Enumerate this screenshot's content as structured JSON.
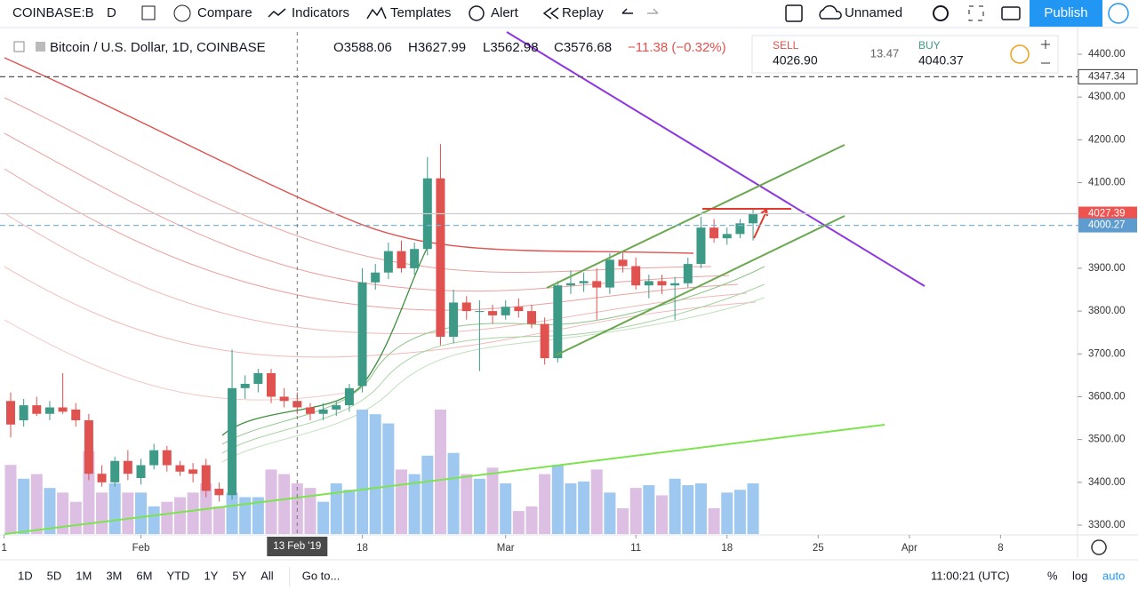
{
  "toolbar": {
    "symbol": "COINBASE:B",
    "interval": "D",
    "compare": "Compare",
    "indicators": "Indicators",
    "templates": "Templates",
    "alert": "Alert",
    "replay": "Replay",
    "layout": "Unnamed",
    "publish": "Publish"
  },
  "legend": {
    "title": "Bitcoin / U.S. Dollar, 1D, COINBASE",
    "open": "O3588.06",
    "high": "H3627.99",
    "low": "L3562.98",
    "close": "C3576.68",
    "change": "−11.38 (−0.32%)"
  },
  "trade": {
    "sell_label": "SELL",
    "sell": "4026.90",
    "spread": "13.47",
    "buy_label": "BUY",
    "buy": "4040.37"
  },
  "chart_data": {
    "type": "candlestick",
    "candles": [
      [
        3590,
        3610,
        3505,
        3535
      ],
      [
        3545,
        3595,
        3530,
        3580
      ],
      [
        3580,
        3600,
        3555,
        3560
      ],
      [
        3560,
        3590,
        3545,
        3575
      ],
      [
        3575,
        3655,
        3560,
        3565
      ],
      [
        3570,
        3585,
        3530,
        3545
      ],
      [
        3545,
        3560,
        3405,
        3420
      ],
      [
        3420,
        3440,
        3390,
        3400
      ],
      [
        3400,
        3460,
        3390,
        3450
      ],
      [
        3450,
        3475,
        3405,
        3420
      ],
      [
        3410,
        3455,
        3395,
        3440
      ],
      [
        3440,
        3490,
        3430,
        3475
      ],
      [
        3475,
        3485,
        3425,
        3440
      ],
      [
        3440,
        3450,
        3415,
        3425
      ],
      [
        3430,
        3445,
        3400,
        3420
      ],
      [
        3440,
        3455,
        3365,
        3380
      ],
      [
        3385,
        3400,
        3355,
        3370
      ],
      [
        3370,
        3710,
        3360,
        3620
      ],
      [
        3620,
        3650,
        3595,
        3630
      ],
      [
        3630,
        3665,
        3610,
        3655
      ],
      [
        3655,
        3665,
        3585,
        3600
      ],
      [
        3600,
        3620,
        3575,
        3590
      ],
      [
        3590,
        3610,
        3560,
        3575
      ],
      [
        3575,
        3585,
        3545,
        3560
      ],
      [
        3560,
        3585,
        3545,
        3570
      ],
      [
        3570,
        3590,
        3555,
        3580
      ],
      [
        3580,
        3630,
        3565,
        3620
      ],
      [
        3625,
        3900,
        3610,
        3867
      ],
      [
        3867,
        3910,
        3850,
        3890
      ],
      [
        3890,
        3960,
        3875,
        3940
      ],
      [
        3940,
        3965,
        3890,
        3900
      ],
      [
        3900,
        3960,
        3885,
        3945
      ],
      [
        3945,
        4160,
        3930,
        4110
      ],
      [
        4110,
        4190,
        3720,
        3740
      ],
      [
        3740,
        3850,
        3725,
        3820
      ],
      [
        3820,
        3835,
        3780,
        3800
      ],
      [
        3800,
        3825,
        3660,
        3800
      ],
      [
        3800,
        3815,
        3770,
        3790
      ],
      [
        3790,
        3825,
        3780,
        3810
      ],
      [
        3810,
        3830,
        3785,
        3800
      ],
      [
        3800,
        3815,
        3760,
        3770
      ],
      [
        3770,
        3785,
        3675,
        3690
      ],
      [
        3690,
        3870,
        3680,
        3860
      ],
      [
        3860,
        3895,
        3840,
        3865
      ],
      [
        3865,
        3890,
        3845,
        3870
      ],
      [
        3870,
        3900,
        3780,
        3855
      ],
      [
        3855,
        3935,
        3840,
        3920
      ],
      [
        3920,
        3940,
        3890,
        3905
      ],
      [
        3905,
        3925,
        3850,
        3860
      ],
      [
        3860,
        3885,
        3830,
        3870
      ],
      [
        3870,
        3885,
        3840,
        3860
      ],
      [
        3860,
        3880,
        3780,
        3865
      ],
      [
        3865,
        3925,
        3855,
        3910
      ],
      [
        3910,
        4020,
        3900,
        3995
      ],
      [
        3995,
        4015,
        3960,
        3970
      ],
      [
        3970,
        3995,
        3955,
        3980
      ],
      [
        3980,
        4015,
        3970,
        4005
      ],
      [
        4005,
        4040,
        3965,
        4027
      ]
    ],
    "volumes": [
      75,
      60,
      65,
      50,
      45,
      35,
      90,
      45,
      55,
      45,
      45,
      30,
      35,
      40,
      45,
      55,
      30,
      45,
      40,
      40,
      70,
      65,
      55,
      50,
      35,
      55,
      48,
      135,
      130,
      120,
      70,
      65,
      85,
      135,
      88,
      65,
      60,
      72,
      55,
      25,
      30,
      65,
      75,
      55,
      57,
      70,
      45,
      28,
      50,
      53,
      42,
      60,
      53,
      55,
      28,
      45,
      48,
      55
    ],
    "ylim": [
      3280,
      4440
    ],
    "yticks": [
      {
        "value": 4400,
        "label": "4400.00"
      },
      {
        "value": 4300,
        "label": "4300.00"
      },
      {
        "value": 4200,
        "label": "4200.00"
      },
      {
        "value": 4100,
        "label": "4100.00"
      },
      {
        "value": 4000,
        "label": "4000.00"
      },
      {
        "value": 3900,
        "label": "3900.00"
      },
      {
        "value": 3800,
        "label": "3800.00"
      },
      {
        "value": 3700,
        "label": "3700.00"
      },
      {
        "value": 3600,
        "label": "3600.00"
      },
      {
        "value": 3500,
        "label": "3500.00"
      },
      {
        "value": 3400,
        "label": "3400.00"
      },
      {
        "value": 3300,
        "label": "3300.00"
      }
    ],
    "xticks": [
      {
        "value": -0.5,
        "label": "1"
      },
      {
        "value": 10,
        "label": "Feb"
      },
      {
        "value": 27,
        "label": "18"
      },
      {
        "value": 38,
        "label": "Mar"
      },
      {
        "value": 48,
        "label": "11"
      },
      {
        "value": 55,
        "label": "18"
      },
      {
        "value": 62,
        "label": "25"
      },
      {
        "value": 69,
        "label": "Apr"
      },
      {
        "value": 76,
        "label": "8"
      }
    ],
    "crosshair": {
      "value": 22,
      "label": "13 Feb '19"
    },
    "price_lines": [
      {
        "value": 4347.34,
        "color": "#555555",
        "label_bg": "#ffffff"
      },
      {
        "value": 4027.39,
        "color": "#cccccc",
        "label_bg": "#ef5350"
      },
      {
        "value": 4000.27,
        "color": "#7fb3d5",
        "label_bg": "#5e9ccf"
      }
    ],
    "up_color": "#3d9a87",
    "down_color": "#e0524f",
    "up_volume_color": "#9ec8ef",
    "down_volume_color": "#dcbfe3"
  },
  "bottom": {
    "ranges": [
      "1D",
      "5D",
      "1M",
      "3M",
      "6M",
      "YTD",
      "1Y",
      "5Y",
      "All"
    ],
    "goto": "Go to...",
    "clock": "11:00:21 (UTC)",
    "percent": "%",
    "log": "log",
    "auto": "auto"
  }
}
